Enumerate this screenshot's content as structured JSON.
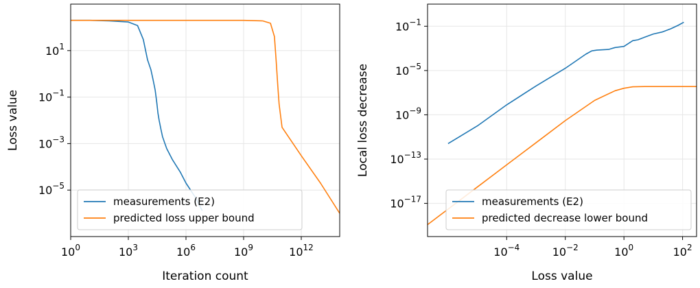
{
  "chart_data": [
    {
      "type": "line",
      "xlabel": "Iteration count",
      "ylabel": "Loss value",
      "xscale": "log",
      "yscale": "log",
      "xlim": [
        1,
        100000000000000.0
      ],
      "ylim": [
        1e-07,
        1000.0
      ],
      "xticks": [
        {
          "value": 1,
          "base": "10",
          "exp": "0"
        },
        {
          "value": 1000,
          "base": "10",
          "exp": "3"
        },
        {
          "value": 1000000.0,
          "base": "10",
          "exp": "6"
        },
        {
          "value": 1000000000.0,
          "base": "10",
          "exp": "9"
        },
        {
          "value": 1000000000000.0,
          "base": "10",
          "exp": "12"
        }
      ],
      "yticks": [
        {
          "value": 10,
          "base": "10",
          "exp": "1"
        },
        {
          "value": 0.1,
          "base": "10",
          "exp": "−1"
        },
        {
          "value": 0.001,
          "base": "10",
          "exp": "−3"
        },
        {
          "value": 1e-05,
          "base": "10",
          "exp": "−5"
        }
      ],
      "grid": true,
      "legend": "lower-left",
      "series": [
        {
          "name": "measurements (E2)",
          "color": "#1f77b4",
          "x": [
            1,
            10,
            100,
            1000,
            3000,
            6000,
            10000,
            15000,
            20000,
            25000,
            30000,
            35000,
            40000,
            50000,
            60000,
            80000,
            100000,
            200000,
            500000,
            1000000,
            3000000,
            7000000
          ],
          "y": [
            200,
            200,
            190,
            170,
            120,
            30,
            4,
            1.5,
            0.5,
            0.2,
            0.06,
            0.02,
            0.01,
            0.004,
            0.002,
            0.001,
            0.0006,
            0.0002,
            6e-05,
            2e-05,
            5e-06,
            1.3e-06
          ]
        },
        {
          "name": "predicted loss upper bound",
          "color": "#ff7f0e",
          "x": [
            1,
            1000000.0,
            1000000000.0,
            10000000000.0,
            25000000000.0,
            40000000000.0,
            50000000000.0,
            60000000000.0,
            70000000000.0,
            100000000000.0,
            1000000000000.0,
            10000000000000.0,
            100000000000000.0
          ],
          "y": [
            200,
            200,
            200,
            190,
            150,
            40,
            3,
            0.3,
            0.05,
            0.005,
            0.0003,
            2e-05,
            1e-06
          ]
        }
      ]
    },
    {
      "type": "line",
      "xlabel": "Loss value",
      "ylabel": "Local loss decrease",
      "xscale": "log",
      "yscale": "log",
      "xlim": [
        2e-07,
        300
      ],
      "ylim": [
        1e-20,
        10.0
      ],
      "xticks": [
        {
          "value": 0.0001,
          "base": "10",
          "exp": "−4"
        },
        {
          "value": 0.01,
          "base": "10",
          "exp": "−2"
        },
        {
          "value": 1,
          "base": "10",
          "exp": "0"
        },
        {
          "value": 100,
          "base": "10",
          "exp": "2"
        }
      ],
      "yticks": [
        {
          "value": 0.1,
          "base": "10",
          "exp": "−1"
        },
        {
          "value": 1e-05,
          "base": "10",
          "exp": "−5"
        },
        {
          "value": 1e-09,
          "base": "10",
          "exp": "−9"
        },
        {
          "value": 1e-13,
          "base": "10",
          "exp": "−13"
        },
        {
          "value": 1e-17,
          "base": "10",
          "exp": "−17"
        }
      ],
      "grid": true,
      "legend": "lower-right",
      "series": [
        {
          "name": "measurements (E2)",
          "color": "#1f77b4",
          "x": [
            1e-06,
            1e-05,
            0.0001,
            0.001,
            0.01,
            0.05,
            0.08,
            0.12,
            0.3,
            0.5,
            1,
            2,
            3,
            5,
            10,
            20,
            40,
            70,
            110
          ],
          "y": [
            2.5e-12,
            1e-10,
            8e-09,
            4e-07,
            1.6e-05,
            0.0003,
            0.0006,
            0.0007,
            0.0008,
            0.0012,
            0.0015,
            0.005,
            0.006,
            0.01,
            0.02,
            0.03,
            0.06,
            0.12,
            0.23
          ]
        },
        {
          "name": "predicted decrease lower bound",
          "color": "#ff7f0e",
          "x": [
            2e-07,
            1e-06,
            1e-05,
            0.0001,
            0.001,
            0.01,
            0.1,
            0.5,
            1,
            2,
            5,
            300
          ],
          "y": [
            1.2e-19,
            3e-18,
            3e-16,
            3e-14,
            3e-12,
            3e-10,
            2e-08,
            1.5e-07,
            2.5e-07,
            3.4e-07,
            3.6e-07,
            3.6e-07
          ]
        }
      ]
    }
  ]
}
